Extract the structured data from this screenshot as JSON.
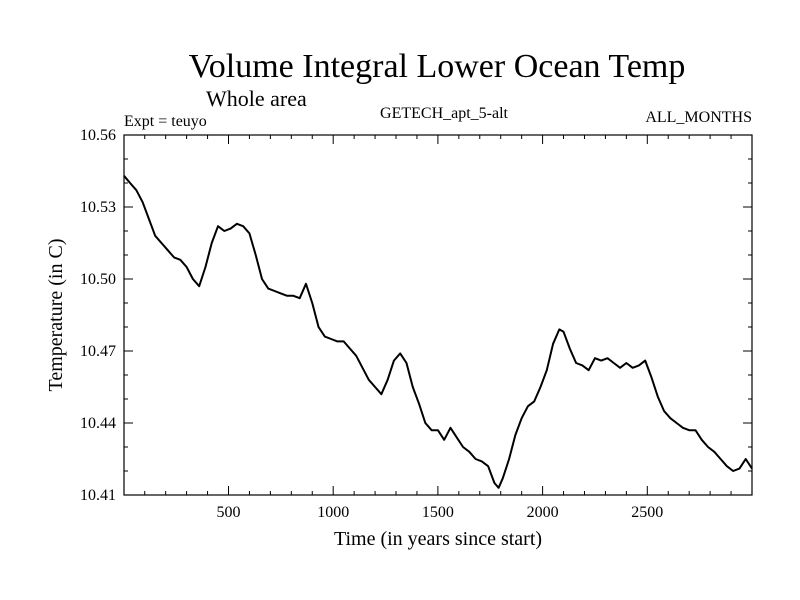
{
  "header": {
    "title": "Volume Integral Lower Ocean Temp",
    "subtitle": "Whole area",
    "experiment": "Expt = teuyo",
    "model": "GETECH_apt_5-alt",
    "months": "ALL_MONTHS"
  },
  "chart_data": {
    "type": "line",
    "xlabel": "Time (in years since start)",
    "ylabel": "Temperature (in C)",
    "xlim": [
      1,
      3000
    ],
    "ylim": [
      10.41,
      10.56
    ],
    "xticks": [
      500,
      1000,
      1500,
      2000,
      2500
    ],
    "yticks": [
      10.41,
      10.44,
      10.47,
      10.5,
      10.53,
      10.56
    ],
    "ytick_labels": [
      "10.41",
      "10.44",
      "10.47",
      "10.50",
      "10.53",
      "10.56"
    ],
    "grid": false,
    "series": [
      {
        "color": "#000000",
        "x": [
          1,
          30,
          60,
          90,
          120,
          150,
          180,
          210,
          240,
          270,
          300,
          330,
          360,
          390,
          420,
          450,
          480,
          510,
          540,
          570,
          600,
          630,
          660,
          690,
          720,
          750,
          780,
          810,
          840,
          870,
          900,
          930,
          960,
          990,
          1020,
          1050,
          1080,
          1110,
          1140,
          1170,
          1200,
          1230,
          1260,
          1290,
          1320,
          1350,
          1380,
          1410,
          1440,
          1470,
          1500,
          1530,
          1560,
          1590,
          1620,
          1650,
          1680,
          1710,
          1740,
          1770,
          1790,
          1810,
          1840,
          1870,
          1900,
          1930,
          1960,
          1990,
          2020,
          2050,
          2080,
          2100,
          2130,
          2160,
          2190,
          2220,
          2250,
          2280,
          2310,
          2340,
          2370,
          2400,
          2430,
          2460,
          2490,
          2520,
          2550,
          2580,
          2610,
          2640,
          2670,
          2700,
          2730,
          2760,
          2790,
          2820,
          2850,
          2880,
          2910,
          2940,
          2970,
          3000
        ],
        "y": [
          10.543,
          10.54,
          10.537,
          10.532,
          10.525,
          10.518,
          10.515,
          10.512,
          10.509,
          10.508,
          10.505,
          10.5,
          10.497,
          10.505,
          10.515,
          10.522,
          10.52,
          10.521,
          10.523,
          10.522,
          10.519,
          10.51,
          10.5,
          10.496,
          10.495,
          10.494,
          10.493,
          10.493,
          10.492,
          10.498,
          10.49,
          10.48,
          10.476,
          10.475,
          10.474,
          10.474,
          10.471,
          10.468,
          10.463,
          10.458,
          10.455,
          10.452,
          10.458,
          10.466,
          10.469,
          10.465,
          10.455,
          10.448,
          10.44,
          10.437,
          10.437,
          10.433,
          10.438,
          10.434,
          10.43,
          10.428,
          10.425,
          10.424,
          10.422,
          10.415,
          10.413,
          10.417,
          10.425,
          10.435,
          10.442,
          10.447,
          10.449,
          10.455,
          10.462,
          10.473,
          10.479,
          10.478,
          10.471,
          10.465,
          10.464,
          10.462,
          10.467,
          10.466,
          10.467,
          10.465,
          10.463,
          10.465,
          10.463,
          10.464,
          10.466,
          10.459,
          10.451,
          10.445,
          10.442,
          10.44,
          10.438,
          10.437,
          10.437,
          10.433,
          10.43,
          10.428,
          10.425,
          10.422,
          10.42,
          10.421,
          10.425,
          10.421
        ]
      }
    ]
  }
}
